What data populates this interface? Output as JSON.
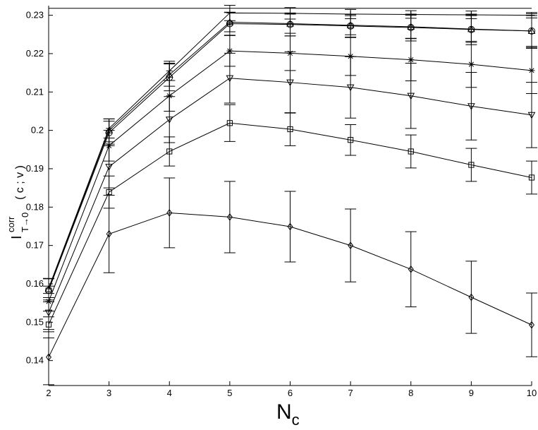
{
  "chart_data": {
    "type": "line",
    "xlabel_main": "N",
    "xlabel_sub": "c",
    "ylabel_main": "I",
    "ylabel_sup": "corr",
    "ylabel_sub": "T→0",
    "ylabel_args": "( c ; v )",
    "x": [
      2,
      3,
      4,
      5,
      6,
      7,
      8,
      9,
      10
    ],
    "xlim": [
      2,
      10
    ],
    "ylim": [
      0.1335,
      0.2325
    ],
    "xticks": [
      2,
      3,
      4,
      5,
      6,
      7,
      8,
      9,
      10
    ],
    "yticks": [
      "0.14",
      "0.15",
      "0.16",
      "0.17",
      "0.18",
      "0.19",
      "0.2",
      "0.21",
      "0.22",
      "0.23"
    ],
    "reference_line": 0.2318,
    "series": [
      {
        "marker": "plus",
        "values": [
          0.1589,
          0.2005,
          0.2155,
          0.2306,
          0.2305,
          0.2303,
          0.2302,
          0.2301,
          0.23
        ],
        "errors": [
          0.0025,
          0.0025,
          0.0025,
          0.002,
          0.0015,
          0.0012,
          0.001,
          0.001,
          0.0007
        ]
      },
      {
        "marker": "triangle",
        "values": [
          0.1586,
          0.2,
          0.2145,
          0.2282,
          0.2278,
          0.2274,
          0.227,
          0.2264,
          0.2259
        ],
        "errors": [
          0.0028,
          0.003,
          0.003,
          0.0025,
          0.0025,
          0.0025,
          0.003,
          0.0035,
          0.004
        ]
      },
      {
        "marker": "circle",
        "values": [
          0.1583,
          0.1994,
          0.2138,
          0.2278,
          0.2276,
          0.2272,
          0.2268,
          0.2263,
          0.2259
        ],
        "errors": [
          0.003,
          0.003,
          0.0035,
          0.003,
          0.003,
          0.003,
          0.0035,
          0.004,
          0.0045
        ]
      },
      {
        "marker": "asterisk",
        "values": [
          0.1554,
          0.196,
          0.209,
          0.2207,
          0.2201,
          0.2193,
          0.2184,
          0.2172,
          0.2156
        ],
        "errors": [
          0.004,
          0.004,
          0.004,
          0.004,
          0.0045,
          0.005,
          0.0055,
          0.006,
          0.006
        ]
      },
      {
        "marker": "triangle-down",
        "values": [
          0.1525,
          0.1905,
          0.2028,
          0.2136,
          0.2125,
          0.2112,
          0.209,
          0.2063,
          0.204
        ],
        "errors": [
          0.005,
          0.0055,
          0.006,
          0.0065,
          0.008,
          0.008,
          0.0085,
          0.0088,
          0.0085
        ]
      },
      {
        "marker": "square",
        "values": [
          0.1494,
          0.1839,
          0.1945,
          0.2019,
          0.2003,
          0.1975,
          0.1945,
          0.191,
          0.1877
        ],
        "errors": [
          0.0035,
          0.0042,
          0.0038,
          0.0048,
          0.0043,
          0.004,
          0.0043,
          0.0043,
          0.0043
        ]
      },
      {
        "marker": "diamond",
        "values": [
          0.1409,
          0.173,
          0.1785,
          0.1774,
          0.1749,
          0.17,
          0.1638,
          0.1565,
          0.1493
        ],
        "errors": [
          0.0072,
          0.0101,
          0.0091,
          0.0093,
          0.0092,
          0.0095,
          0.0098,
          0.0094,
          0.0083
        ]
      }
    ]
  }
}
